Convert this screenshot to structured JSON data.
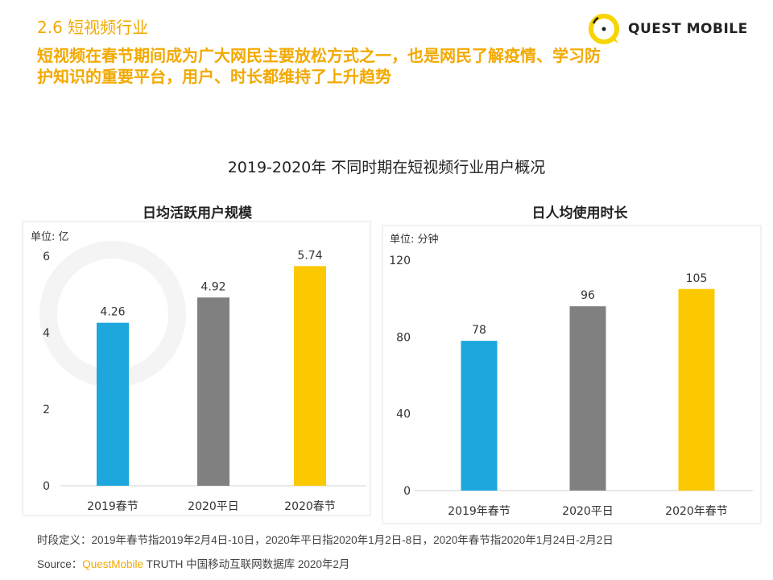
{
  "header": {
    "section": "2.6 短视频行业",
    "headline": "短视频在春节期间成为广大网民主要放松方式之一，也是网民了解疫情、学习防护知识的重要平台，用户、时长都维持了上升趋势"
  },
  "logo": {
    "text": "QUEST MOBILE",
    "color": "#f7d500"
  },
  "watermark": "QUEST MOBILE",
  "main_title": "2019-2020年 不同时期在短视频行业用户概况",
  "chart_data": [
    {
      "type": "bar",
      "title": "日均活跃用户规模",
      "unit": "单位: 亿",
      "categories": [
        "2019春节",
        "2020平日",
        "2020春节"
      ],
      "values": [
        4.26,
        4.92,
        5.74
      ],
      "labels": [
        "4.26",
        "4.92",
        "5.74"
      ],
      "yticks": [
        "0",
        "2",
        "4",
        "6"
      ],
      "tick_values": [
        0,
        2,
        4,
        6
      ],
      "ylim": [
        0,
        6
      ],
      "colors": [
        "#1ea7dd",
        "#808080",
        "#fcc800"
      ],
      "grid": false
    },
    {
      "type": "bar",
      "title": "日人均使用时长",
      "unit": "单位: 分钟",
      "categories": [
        "2019年春节",
        "2020平日",
        "2020年春节"
      ],
      "values": [
        78,
        96,
        105
      ],
      "labels": [
        "78",
        "96",
        "105"
      ],
      "yticks": [
        "0",
        "40",
        "80",
        "120"
      ],
      "tick_values": [
        0,
        40,
        80,
        120
      ],
      "ylim": [
        0,
        120
      ],
      "colors": [
        "#1ea7dd",
        "#808080",
        "#fcc800"
      ],
      "grid": false
    }
  ],
  "footer": {
    "definition": "时段定义：2019年春节指2019年2月4日-10日，2020年平日指2020年1月2日-8日，2020年春节指2020年1月24日-2月2日",
    "source_label": "Source：",
    "source_brand": "QuestMobile",
    "source_rest": " TRUTH 中国移动互联网数据库 2020年2月"
  }
}
